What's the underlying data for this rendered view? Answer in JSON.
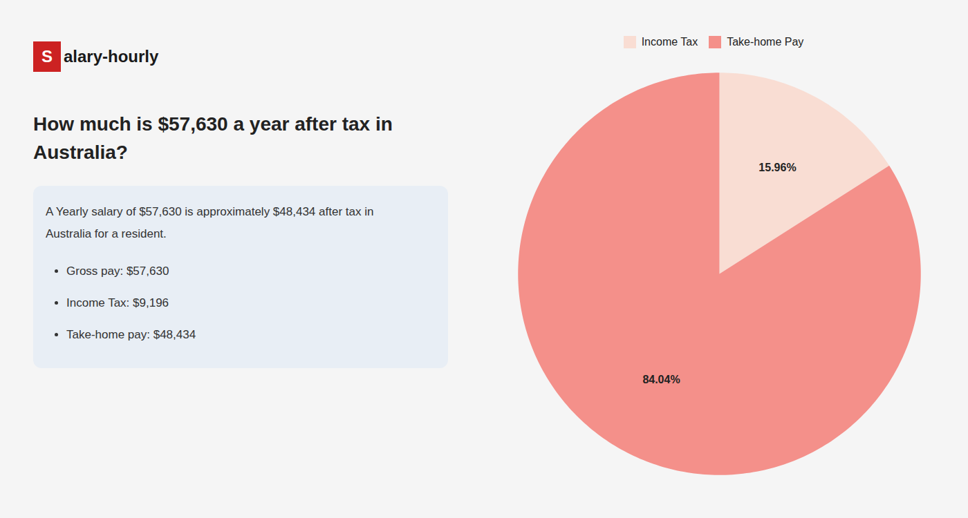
{
  "chart_data": {
    "type": "pie",
    "title": "How much is $57,630 a year after tax in\nAustralia?",
    "subtitle": "A Yearly salary of $57,630 is approximately $48,434 after tax in\nAustralia for a resident.",
    "annotations": [
      "Salary-hourly",
      "Gross pay: $57,630",
      "Income Tax: $9,196",
      "Take-home pay: $48,434"
    ],
    "categories": [
      "Income Tax",
      "Take-home Pay"
    ],
    "values": [
      15.96,
      84.04
    ],
    "value_labels": [
      "15.96%",
      "84.04%"
    ],
    "colors": [
      "#f9ddd3",
      "#f4908a"
    ],
    "data_labels": true,
    "legend": "top"
  }
}
